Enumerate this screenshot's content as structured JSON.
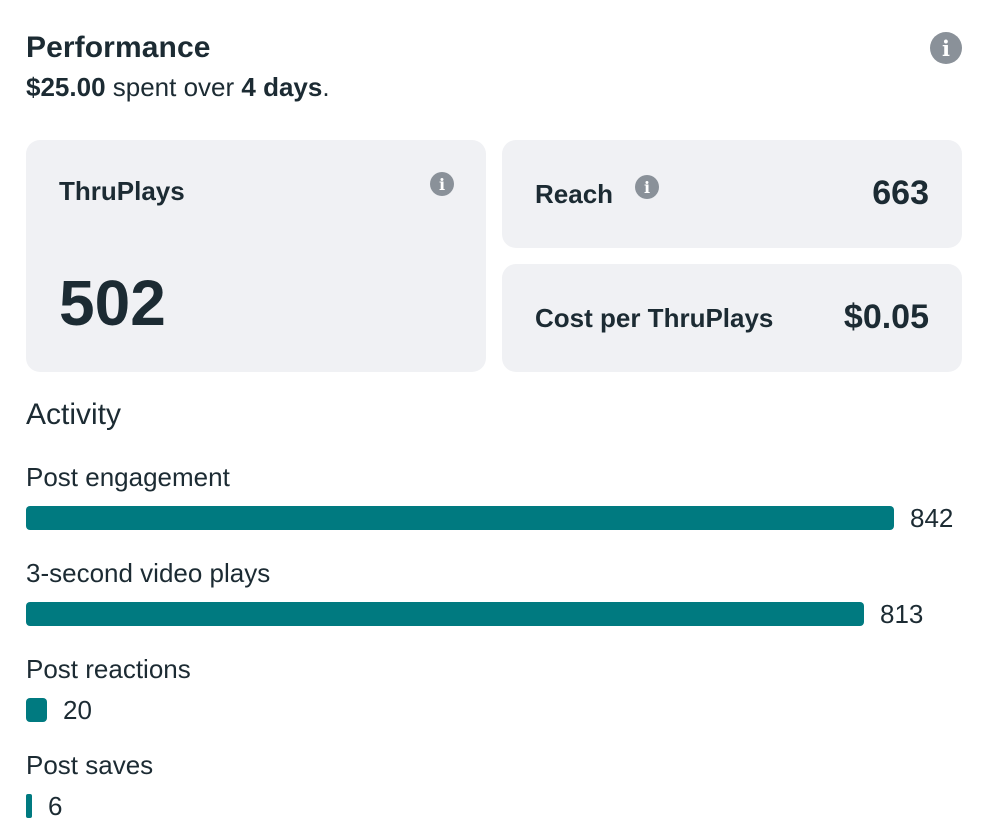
{
  "performance": {
    "title": "Performance",
    "spent": "$25.00",
    "spent_middle": " spent over ",
    "days": "4 days",
    "period_end": ".",
    "info_icon": "info-icon"
  },
  "cards": {
    "thruplays": {
      "label": "ThruPlays",
      "value": "502"
    },
    "reach": {
      "label": "Reach",
      "value": "663"
    },
    "cost": {
      "label": "Cost per ThruPlays",
      "value": "$0.05"
    }
  },
  "activity": {
    "title": "Activity",
    "metrics": [
      {
        "label": "Post engagement",
        "value": "842",
        "count": 842
      },
      {
        "label": "3-second video plays",
        "value": "813",
        "count": 813
      },
      {
        "label": "Post reactions",
        "value": "20",
        "count": 20
      },
      {
        "label": "Post saves",
        "value": "6",
        "count": 6
      }
    ]
  },
  "colors": {
    "bar": "#007a80",
    "card_bg": "#f0f1f4",
    "text": "#1c2b33",
    "info_icon": "#8a9199"
  }
}
